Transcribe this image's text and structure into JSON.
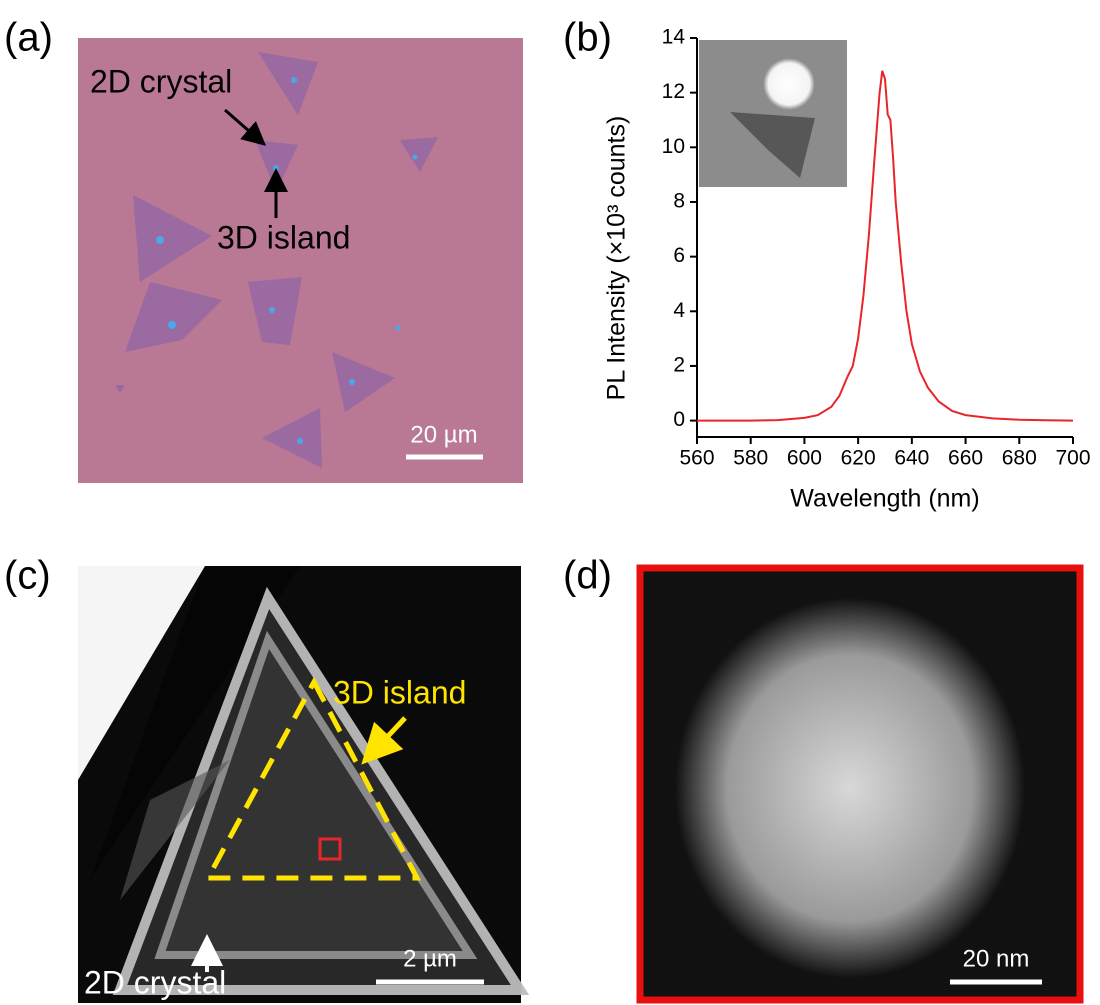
{
  "panel_labels": [
    "(a)",
    "(b)",
    "(c)",
    "(d)"
  ],
  "panel_a": {
    "annotations": [
      "2D crystal",
      "3D island"
    ],
    "scale_bar": "20 µm"
  },
  "panel_c": {
    "annotations": [
      "3D island",
      "2D crystal"
    ],
    "scale_bar": "2 µm"
  },
  "panel_d": {
    "scale_bar": "20 nm"
  },
  "chart_data": {
    "type": "line",
    "xlabel": "Wavelength (nm)",
    "ylabel": "PL Intensity (×10³ counts)",
    "x": [
      560,
      580,
      590,
      600,
      605,
      610,
      613,
      616,
      618,
      620,
      622,
      624,
      626,
      628,
      629,
      630,
      631,
      632,
      633,
      634,
      636,
      638,
      640,
      643,
      646,
      650,
      655,
      660,
      670,
      680,
      690,
      700
    ],
    "values": [
      0,
      0,
      0.02,
      0.1,
      0.2,
      0.5,
      0.9,
      1.6,
      2.0,
      3.0,
      4.6,
      6.8,
      9.5,
      12.0,
      12.8,
      12.5,
      11.2,
      11.0,
      9.6,
      8.0,
      5.8,
      4.0,
      2.8,
      1.8,
      1.2,
      0.7,
      0.35,
      0.2,
      0.08,
      0.03,
      0.01,
      0
    ],
    "color": "#e8262a",
    "xlim": [
      560,
      700
    ],
    "xticks": [
      560,
      580,
      600,
      620,
      640,
      660,
      680,
      700
    ],
    "ylim": [
      -0.6,
      14
    ],
    "yticks": [
      0,
      2,
      4,
      6,
      8,
      10,
      12,
      14
    ]
  }
}
